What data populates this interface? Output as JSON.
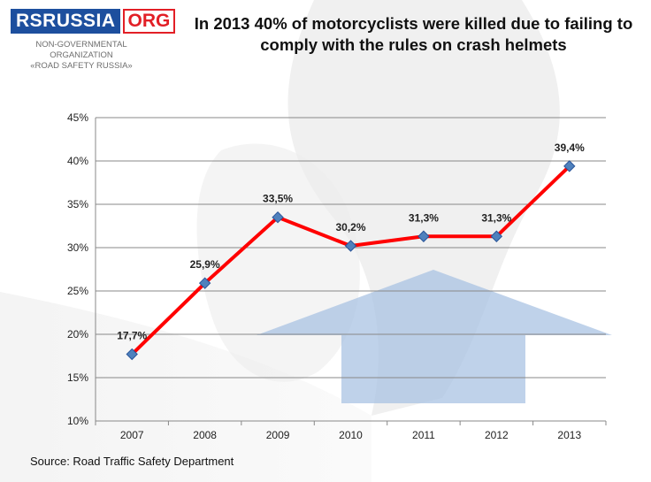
{
  "logo": {
    "main": "RSRUSSIA",
    "org": "ORG",
    "sub1": "NON-GOVERNMENTAL ORGANIZATION",
    "sub2": "«ROAD SAFETY RUSSIA»"
  },
  "source": "Source: Road Traffic Safety Department",
  "chart_data": {
    "type": "line",
    "title": "In 2013 40% of motorcyclists were killed due to failing to comply with the rules on crash helmets",
    "xlabel": "",
    "ylabel": "",
    "categories": [
      "2007",
      "2008",
      "2009",
      "2010",
      "2011",
      "2012",
      "2013"
    ],
    "series": [
      {
        "values": [
          17.7,
          25.9,
          33.5,
          30.2,
          31.3,
          31.3,
          39.4
        ]
      }
    ],
    "data_labels": [
      "17,7%",
      "25,9%",
      "33,5%",
      "30,2%",
      "31,3%",
      "31,3%",
      "39,4%"
    ],
    "ylim": [
      10,
      45
    ],
    "yticks": [
      10,
      15,
      20,
      25,
      30,
      35,
      40,
      45
    ],
    "ytick_labels": [
      "10%",
      "15%",
      "20%",
      "25%",
      "30%",
      "35%",
      "40%",
      "45%"
    ],
    "grid": true,
    "legend": "none",
    "colors": {
      "line": "#ff0000",
      "marker": "#4f81bd",
      "marker_edge": "#2a5599",
      "grid": "#888888",
      "arrow": "#a9c3e3"
    }
  }
}
